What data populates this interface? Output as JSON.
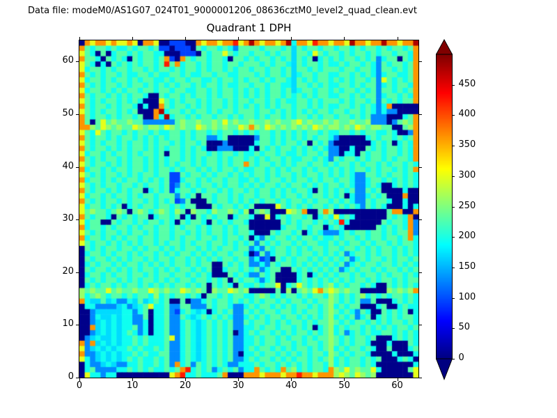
{
  "header": {
    "data_file_label": "Data file: modeM0/AS1G07_024T01_9000001206_08636cztM0_level2_quad_clean.evt"
  },
  "chart_data": {
    "type": "heatmap",
    "title": "Quadrant 1 DPH",
    "x_ticks": [
      0,
      10,
      20,
      30,
      40,
      50,
      60
    ],
    "y_ticks": [
      0,
      10,
      20,
      30,
      40,
      50,
      60
    ],
    "x_range": [
      0,
      64
    ],
    "y_range": [
      0,
      64
    ],
    "grid_size": 64,
    "colormap": "jet",
    "colorbar": {
      "ticks": [
        450,
        400,
        350,
        300,
        250,
        200,
        150,
        100,
        50,
        0
      ],
      "vmin": 0,
      "vmax": 500,
      "extend": "both",
      "over_color": "#800000",
      "under_color": "#000080"
    },
    "value_map": {
      "N": 5,
      "B": 95,
      "b": 130,
      "C": 170,
      "c": 195,
      "g": 230,
      "G": 262,
      "y": 300,
      "o": 365,
      "r": 425,
      "R": 478
    },
    "grid_rows_top_to_bottom": [
      "NoyooyoyyoyNooyNNBBBNNoyooyooryoRoyooyoRcooyrooyooyRooyooRooyooR",
      "ogcggcgccgcggcgBBNBBBNgcggcgcbggggcgggcgCgcggcggcggcgcggcgcggcgo",
      "ygcNgNcggcgcggccNNNBBBNgcggygcggcggcgcggCggcygcggcgcggcgcggcggco",
      "oggcNgcgcNgcggcgoBNogcggcggcNggcgcggcgcgCgcgNcgcgcggcgcgbcggNgco",
      "ygcNcNgcgcgcggcgrgocggcgcggcggcgggcgcggcCgcggcgccgcggcgcbgcggcgo",
      "ycggcgcggcggcgcggcgcggcgcggcgcggcggcggcgCggcgcgggcggcggcbggcgcgo",
      "ogcgcggcgccggcgccggcgccggcggccgggcgcggcgCcggcggccggcgcgcbcggccgo",
      "ycggcgcggcgcggccgcggcggccgcggcgcggcgcggcCgcgcggcgcgcggcgbygcgcgo",
      "ogcgcggcgcggcgcgcgcggcgcggcgccggcggcggccCggcgcgccggcgcggbcgcggco",
      "ycggcgcgcggcggcggcggccggcgcggcgcgcgcggcgCcggcggcgcggcgcgbggcgcgo",
      "ogcggcgcgcggcNNgcggcgcggcgcggcgcgcgcggcgcgcgcggccggcgcggbcggcgco",
      "ygcgcggcgcgcNNNygcgcggcgcggcgcggcggcgcgccggcgcgggcgcggcgbgcgcggo",
      "ogcggcgcggcNcNNogcggcgcgcggcgcgcgcgcgcggcggcgcgccggcgcgcbcoNNNNN",
      "ygcgcggcgcgNNNoRcggcgcggcgcggcgggcggcgcgcgcgcggcggcggcgcbcbbNNNN",
      "ogcggcgcggcgNNocRcggcgcggcggcgcggcgcggcgcggcgcggcggcgcgbbbNNNcgo",
      "ogNgygGggGggbbbbbbgGggGggGgygGggGggGgGggGygGggGgGggGggGbbbNbgGgo",
      "ooGgyGgGggyGgGGgyGgGggyGgGgGggyGoGgyGgGgGgGgyGgGGgGgyGgGGggNNgGo",
      "ygcygcggcgcggcgccggcgcggcgcggcgcgcggcgcgcgcggcgccggcgcggccgcNNbo",
      "ogcggcgcggcgcgcgcggcgcggbbcgNNNNNbggcgcgcgcgcggcbNNNNNcgcggcgcgo",
      "ygcgcggcgcggcgcggcgcggcgNNNbNNNNNcggcgcggcgNgcgbNNNNNNNcgcgNcgco",
      "ogcggcgcgcggcgcgcggcgcgcNNbbbNNNcNgcgcggcgcgcgcbbNNcNNgcgcggcgco",
      "ycggcgcggcgcggcgNggcgcggcgcggcgccgcggcgccgcggcgbbNccNgcggcggcgco",
      "ogcgcggcgcggcgcgcggcgcgcggcgcggcgcgcggcgccggcgcbgcggcgcggcgcggco",
      "ygcggcgcgcggcgcgcgcggcgcggcgcggogcggcgcgcggcggcgcggcgcggcgcggcgc",
      "ocggcgcggcggcgcggcgcggcgcgcggcgccggcgcgcggcgcggcgcgcggcgcggcgcgo",
      "ygcgcggcgcgcggcggBBgcggcgcggcgcgcggcgcggcgcggcgcgcgcbbggcgcggcgc",
      "ocggcgcgcggcgcgcgBBcggcgcggcggccgcgcggcgcggcgcggcggcbbcggcgcgcgc",
      "ygcgcggcggcgcggcgBbgcgcggcgcggcgcgcggcgcggcgcgcggcgcbbcgcNNcgcgc",
      "ogcggcgcgcggNcgcgBcggcgcggcgcggcgcggcgcgcggcNgcgcgcgbbgcgNNNNcNN",
      "ycggcgcggcgcggcgggbgcgNggcggcgcggcggcgcggcgcggcgcgNcbbcgcgNNNoNN",
      "ogcgcggcgcggcgcgcgBbgNNNgcggcgcgcgcggcgcggcgcggcgcgcbbgcggcNNcNN",
      "ycggcgcgNcgcggcggcgcggNNNgcggcgcgNNNNygcgcgcggcgcgcgcbgcgcNNNcNc",
      "ygGggcgGgNgGgcgGgcGgNGggcGggGgcGNgGgNNNyGgoNNgoGNNNNNNNNNNgooNNo",
      "ogcggcNgcgcggNcggcgNcNgcgcggNcggcNNyNcgcggcgNcgcycgcNNNNNNgcgcoN",
      "ycggNNgcggcgcggcgcNgcggcNgcgcggcNNNNNNgcgcggcgcgcrcNNNNNNgcggcob",
      "ocggcgcggcgcggcggcgcggcgcggcgcggNNNNNNcggcgcggNcgcNNNNNNgcgcgcob",
      "ygcgcggcgcggcgcggcggcgcgcggcgcggcNNNgcggcgNcgcbbbcgcggcggcgcggob",
      "ocggcgcgcggcggcggcgcggcggcgcggcgNcbgcggcgcggcgccgcggcgcggcggcgoc",
      "ygcggcgcgcgcggcgcggcgcggcggcgcgcgbgcgcggcgcggccgcgcggcgcggcgcggc",
      "Ngcgcggcggcgcggcgcgcggcgcgcggcggbcbgcggcgcgcggcggcggcgcgcggcgcgc",
      "NcggcgcggcgcggcgcgcggcgcgcggcggcNBgbcggcgcggcgcgcgbcggcgcggcgcgc",
      "NgcggcgcgcggcgcggcggcgcgcgcggcggbcBbNgcgcggcgcgcgcgbcgcggcgcggcg",
      "NcgcggcgcggcgcgcgcggcgcggNNgcgcgbbcbgcggcgcgcgcgcgbcgcggcggcgcgc",
      "NgcggcgcgcgcggcgcgcggcgcgNNcggcgcgbcggNNgcgcgcgcgbcgcggcgcggcgcg",
      "NcggcgcggcggcgcggcggcgcgcNNNgcgcbbgcgNNNNcgNcgcgcggcgcggcgcggcgc",
      "NgcgcggcgcgcggcgcgcggcggcgcgNgcggcbcgNNNNcgcgcgcgcgcggcgcggcgcgg",
      "NcgcggcgcggcgcgcgcggcgcgNgcgcNgccgcggyNcgygcgcgGcgcggcgcNNgcgcgc",
      "GgGggygGggGggyGgGggyGgGgNGggyGgGNNNNNgNGNgGgyoGyGgGggNNNNNGgGgGo",
      "GcgGgcggcgcggcGcgcggcgcNggcgcggccgGgcgcggcgcggcGgcgcgGcgcgcggcgc",
      "ocCCgCcbbcCgCcgcgNNgNbbcgcggcgcgcgcggcgcggcgcggGgcgcgbbgNNNcgcgc",
      "NccbbbbCcbCcgyccgbbggbbbgcggcbbcgcggcgcgcggcgcgGcgcggNNNcgNNcgcc",
      "NNbCCCCCccbcgNccgbBcgcCcNcgcgbbgcgcggcggcgcggcgGgcgcbgcNNgcgcgNc",
      "NNbcCCcCccbbgNccgbbgcCcgcgcgcbbcgcgcggcggcgcgcgGcgcgbcgNcgcgcggc",
      "NNbCcCcCccbbcNccgbbcgcCcgcgcgbbgcggcgcgcggcgcggGgcgcggcgcgcggcgc",
      "NNoCcCcCccgbcNccgbbcgcCcgcgcgbbccgcggcggcgcgNcgGcgcggcgcgcgcggcg",
      "NNbCcCcCcgcbcNccgbbcgcCcgcgcgNbcgcggcgcgcggcgcgGcgbcgcgccggcgcgc",
      "NbCcCCcCccgcgcccgybcgcCcgcgcgbbccgcggcgcggcgcggGgcgcggcgNNNcgcgc",
      "oboCcCcCccgcgcccgbbcgcCcgcgcgbbccgcggcggcgcggcgGgcgcggcNNNcNNNgc",
      "ybCcCcCccgcgccgcgbbcgcCcgcgcgbbcgcggcgcgcggcgcgGcgcggcgcNNgNNNcg",
      "obbCcCcCccgcgccggbbcgcCcgcgcgbNccgcggcgcgcgcggcGgcgcggcNNNNcNNNc",
      "ycbCcCcCcgcgccgcgbbcgcCcgcgcgbbcgcggcgcgcggcgcgGcgcggcgcgNNNcgcN",
      "NcbbCcCbbccgccgcgbocgbgcgcgcbbcccgcggcgcgcgcggcGcgcggcgcNNNNNNNc",
      "NcgbbbbccgcgcgccgcgorcgcgbcgcgbccogcgcogGcgcggcoGgygGggycNNNNNgy",
      "NyccbccNNNNNNNNNNyorccgcccgoNNNoooyoooyoorooyoooGyGgyGgGNNNNNNNy"
    ]
  }
}
